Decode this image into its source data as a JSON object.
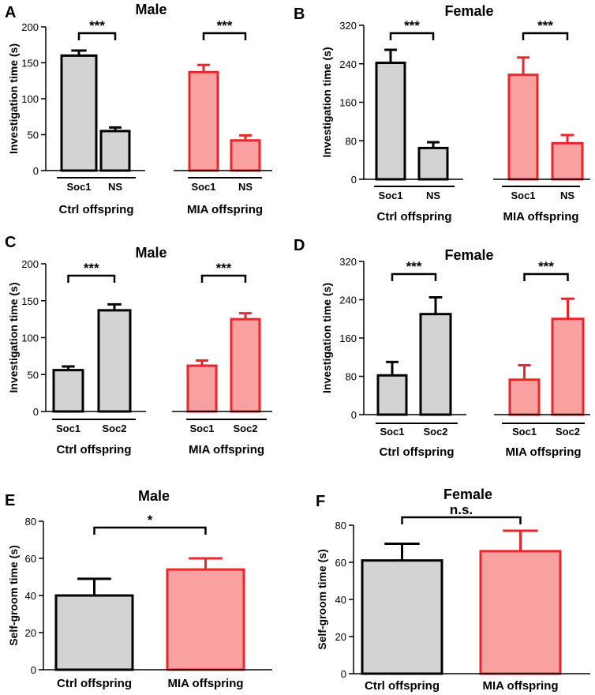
{
  "chart_data": [
    {
      "panel": "A",
      "title": "Male",
      "type": "bar",
      "ylabel": "Investigation time (s)",
      "ylim": [
        0,
        200
      ],
      "yticks": [
        0,
        50,
        100,
        150,
        200
      ],
      "groups": [
        {
          "name": "Ctrl offspring",
          "color": "#d3d3d3",
          "stroke": "#000000",
          "bars": [
            {
              "label": "Soc1",
              "value": 160,
              "err": 7
            },
            {
              "label": "NS",
              "value": 55,
              "err": 5
            }
          ],
          "sig": "***"
        },
        {
          "name": "MIA offspring",
          "color": "#f9a0a0",
          "stroke": "#e8262b",
          "bars": [
            {
              "label": "Soc1",
              "value": 137,
              "err": 10
            },
            {
              "label": "NS",
              "value": 42,
              "err": 7
            }
          ],
          "sig": "***"
        }
      ]
    },
    {
      "panel": "B",
      "title": "Female",
      "type": "bar",
      "ylabel": "Investigation time (s)",
      "ylim": [
        0,
        320
      ],
      "yticks": [
        0,
        80,
        160,
        240,
        320
      ],
      "groups": [
        {
          "name": "Ctrl offspring",
          "color": "#d3d3d3",
          "stroke": "#000000",
          "bars": [
            {
              "label": "Soc1",
              "value": 242,
              "err": 27
            },
            {
              "label": "NS",
              "value": 65,
              "err": 12
            }
          ],
          "sig": "***"
        },
        {
          "name": "MIA offspring",
          "color": "#f9a0a0",
          "stroke": "#e8262b",
          "bars": [
            {
              "label": "Soc1",
              "value": 217,
              "err": 36
            },
            {
              "label": "NS",
              "value": 75,
              "err": 17
            }
          ],
          "sig": "***"
        }
      ]
    },
    {
      "panel": "C",
      "title": "Male",
      "type": "bar",
      "ylabel": "Investigation time (s)",
      "ylim": [
        0,
        200
      ],
      "yticks": [
        0,
        50,
        100,
        150,
        200
      ],
      "groups": [
        {
          "name": "Ctrl offspring",
          "color": "#d3d3d3",
          "stroke": "#000000",
          "bars": [
            {
              "label": "Soc1",
              "value": 56,
              "err": 5
            },
            {
              "label": "Soc2",
              "value": 137,
              "err": 8
            }
          ],
          "sig": "***"
        },
        {
          "name": "MIA offspring",
          "color": "#f9a0a0",
          "stroke": "#e8262b",
          "bars": [
            {
              "label": "Soc1",
              "value": 62,
              "err": 7
            },
            {
              "label": "Soc2",
              "value": 125,
              "err": 8
            }
          ],
          "sig": "***"
        }
      ]
    },
    {
      "panel": "D",
      "title": "Female",
      "type": "bar",
      "ylabel": "Investigation time (s)",
      "ylim": [
        0,
        320
      ],
      "yticks": [
        0,
        80,
        160,
        240,
        320
      ],
      "groups": [
        {
          "name": "Ctrl offspring",
          "color": "#d3d3d3",
          "stroke": "#000000",
          "bars": [
            {
              "label": "Soc1",
              "value": 82,
              "err": 28
            },
            {
              "label": "Soc2",
              "value": 210,
              "err": 35
            }
          ],
          "sig": "***"
        },
        {
          "name": "MIA offspring",
          "color": "#f9a0a0",
          "stroke": "#e8262b",
          "bars": [
            {
              "label": "Soc1",
              "value": 73,
              "err": 30
            },
            {
              "label": "Soc2",
              "value": 200,
              "err": 42
            }
          ],
          "sig": "***"
        }
      ]
    },
    {
      "panel": "E",
      "title": "Male",
      "type": "bar",
      "ylabel": "Self-groom time  (s)",
      "ylim": [
        0,
        80
      ],
      "yticks": [
        0,
        20,
        40,
        60,
        80
      ],
      "categories": [
        "Ctrl offspring",
        "MIA offspring"
      ],
      "values": [
        40,
        54
      ],
      "errors": [
        9,
        6
      ],
      "colors": [
        "#d3d3d3",
        "#f9a0a0"
      ],
      "strokes": [
        "#000000",
        "#e8262b"
      ],
      "sig": "*"
    },
    {
      "panel": "F",
      "title": "Female",
      "type": "bar",
      "ylabel": "Self-groom time  (s)",
      "ylim": [
        0,
        80
      ],
      "yticks": [
        0,
        20,
        40,
        60,
        80
      ],
      "categories": [
        "Ctrl offspring",
        "MIA offspring"
      ],
      "values": [
        61,
        66
      ],
      "errors": [
        9,
        11
      ],
      "colors": [
        "#d3d3d3",
        "#f9a0a0"
      ],
      "strokes": [
        "#000000",
        "#e8262b"
      ],
      "sig": "n.s."
    }
  ]
}
